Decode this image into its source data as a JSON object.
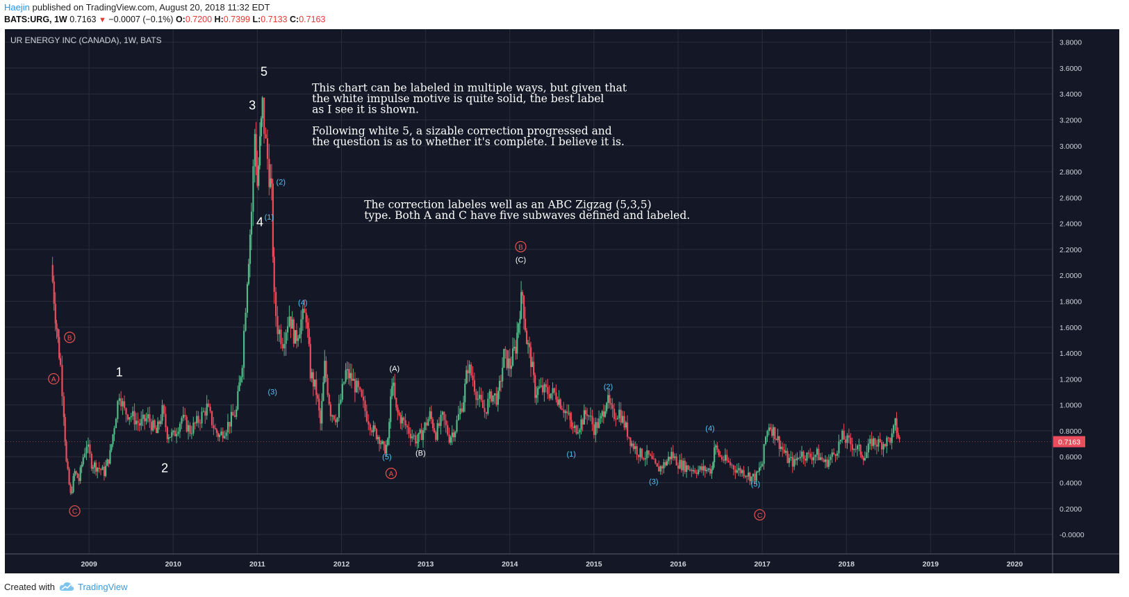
{
  "header": {
    "author": "Haejin",
    "published_text": "published on TradingView.com, August 20, 2018 11:32 EDT",
    "symbol_text": "BATS:URG, 1W",
    "last": "0.7163",
    "change": "−0.0007 (−0.1%)",
    "o_label": "O:",
    "o_value": "0.7200",
    "h_label": "H:",
    "h_value": "0.7399",
    "l_label": "L:",
    "l_value": "0.7133",
    "c_label": "C:",
    "c_value": "0.7163"
  },
  "footer": {
    "created_with": "Created with",
    "brand": "TradingView"
  },
  "chart_data": {
    "type": "candlestick",
    "title": "UR ENERGY INC (CANADA), 1W, BATS",
    "ylim": [
      -0.15,
      3.9
    ],
    "xlim": [
      2008.0,
      2020.45
    ],
    "y_ticks": [
      "3.8000",
      "3.6000",
      "3.4000",
      "3.2000",
      "3.0000",
      "2.8000",
      "2.6000",
      "2.4000",
      "2.2000",
      "2.0000",
      "1.8000",
      "1.6000",
      "1.4000",
      "1.2000",
      "1.0000",
      "0.8000",
      "0.6000",
      "0.4000",
      "0.2000",
      "-0.0000"
    ],
    "x_ticks": [
      "2009",
      "2010",
      "2011",
      "2012",
      "2013",
      "2014",
      "2015",
      "2016",
      "2017",
      "2018",
      "2019",
      "2020"
    ],
    "last_price_label": "0.7163",
    "colors": {
      "up": "#53b987",
      "down": "#eb4d5c",
      "background": "#141826",
      "grid": "#2a2e39"
    },
    "price_path": [
      [
        2008.55,
        2.08
      ],
      [
        2008.6,
        1.7
      ],
      [
        2008.63,
        1.5
      ],
      [
        2008.66,
        1.3
      ],
      [
        2008.7,
        0.95
      ],
      [
        2008.73,
        0.55
      ],
      [
        2008.78,
        0.3
      ],
      [
        2008.83,
        0.48
      ],
      [
        2008.88,
        0.42
      ],
      [
        2008.93,
        0.6
      ],
      [
        2008.97,
        0.7
      ],
      [
        2009.03,
        0.55
      ],
      [
        2009.1,
        0.52
      ],
      [
        2009.18,
        0.48
      ],
      [
        2009.25,
        0.62
      ],
      [
        2009.3,
        0.85
      ],
      [
        2009.36,
        1.1
      ],
      [
        2009.42,
        0.95
      ],
      [
        2009.5,
        0.92
      ],
      [
        2009.6,
        0.85
      ],
      [
        2009.7,
        0.9
      ],
      [
        2009.8,
        0.78
      ],
      [
        2009.87,
        0.95
      ],
      [
        2009.93,
        0.78
      ],
      [
        2010.0,
        0.76
      ],
      [
        2010.1,
        0.9
      ],
      [
        2010.2,
        0.8
      ],
      [
        2010.3,
        0.88
      ],
      [
        2010.4,
        0.98
      ],
      [
        2010.5,
        0.8
      ],
      [
        2010.55,
        0.76
      ],
      [
        2010.65,
        0.85
      ],
      [
        2010.75,
        0.95
      ],
      [
        2010.82,
        1.35
      ],
      [
        2010.88,
        2.0
      ],
      [
        2010.93,
        2.5
      ],
      [
        2010.97,
        3.1
      ],
      [
        2011.0,
        2.7
      ],
      [
        2011.03,
        3.0
      ],
      [
        2011.06,
        3.3
      ],
      [
        2011.1,
        3.0
      ],
      [
        2011.14,
        2.8
      ],
      [
        2011.17,
        2.6
      ],
      [
        2011.2,
        1.8
      ],
      [
        2011.24,
        1.6
      ],
      [
        2011.3,
        1.5
      ],
      [
        2011.38,
        1.7
      ],
      [
        2011.45,
        1.5
      ],
      [
        2011.52,
        1.65
      ],
      [
        2011.58,
        1.7
      ],
      [
        2011.63,
        1.25
      ],
      [
        2011.7,
        1.1
      ],
      [
        2011.75,
        0.85
      ],
      [
        2011.8,
        1.3
      ],
      [
        2011.87,
        0.95
      ],
      [
        2011.95,
        0.9
      ],
      [
        2012.05,
        1.25
      ],
      [
        2012.12,
        1.2
      ],
      [
        2012.2,
        1.1
      ],
      [
        2012.3,
        0.92
      ],
      [
        2012.38,
        0.8
      ],
      [
        2012.45,
        0.75
      ],
      [
        2012.5,
        0.65
      ],
      [
        2012.55,
        0.7
      ],
      [
        2012.6,
        1.2
      ],
      [
        2012.65,
        0.95
      ],
      [
        2012.72,
        0.88
      ],
      [
        2012.8,
        0.8
      ],
      [
        2012.9,
        0.72
      ],
      [
        2012.95,
        0.78
      ],
      [
        2013.05,
        0.92
      ],
      [
        2013.12,
        0.78
      ],
      [
        2013.2,
        0.9
      ],
      [
        2013.28,
        0.75
      ],
      [
        2013.35,
        0.82
      ],
      [
        2013.45,
        1.05
      ],
      [
        2013.5,
        1.3
      ],
      [
        2013.56,
        1.2
      ],
      [
        2013.62,
        1.05
      ],
      [
        2013.7,
        0.95
      ],
      [
        2013.78,
        1.08
      ],
      [
        2013.86,
        1.05
      ],
      [
        2013.93,
        1.38
      ],
      [
        2014.0,
        1.3
      ],
      [
        2014.07,
        1.45
      ],
      [
        2014.12,
        1.75
      ],
      [
        2014.15,
        1.85
      ],
      [
        2014.2,
        1.5
      ],
      [
        2014.25,
        1.35
      ],
      [
        2014.3,
        1.1
      ],
      [
        2014.35,
        1.12
      ],
      [
        2014.45,
        1.1
      ],
      [
        2014.55,
        1.08
      ],
      [
        2014.62,
        1.0
      ],
      [
        2014.7,
        0.9
      ],
      [
        2014.75,
        0.8
      ],
      [
        2014.83,
        0.85
      ],
      [
        2014.92,
        0.95
      ],
      [
        2015.0,
        0.82
      ],
      [
        2015.08,
        0.88
      ],
      [
        2015.15,
        1.05
      ],
      [
        2015.22,
        0.92
      ],
      [
        2015.3,
        0.95
      ],
      [
        2015.38,
        0.82
      ],
      [
        2015.45,
        0.7
      ],
      [
        2015.55,
        0.62
      ],
      [
        2015.65,
        0.6
      ],
      [
        2015.75,
        0.5
      ],
      [
        2015.85,
        0.55
      ],
      [
        2015.92,
        0.62
      ],
      [
        2016.0,
        0.55
      ],
      [
        2016.1,
        0.52
      ],
      [
        2016.2,
        0.5
      ],
      [
        2016.3,
        0.5
      ],
      [
        2016.4,
        0.5
      ],
      [
        2016.43,
        0.68
      ],
      [
        2016.5,
        0.6
      ],
      [
        2016.6,
        0.55
      ],
      [
        2016.7,
        0.5
      ],
      [
        2016.8,
        0.48
      ],
      [
        2016.87,
        0.44
      ],
      [
        2016.93,
        0.45
      ],
      [
        2017.0,
        0.55
      ],
      [
        2017.04,
        0.75
      ],
      [
        2017.08,
        0.85
      ],
      [
        2017.15,
        0.78
      ],
      [
        2017.22,
        0.68
      ],
      [
        2017.3,
        0.58
      ],
      [
        2017.38,
        0.55
      ],
      [
        2017.45,
        0.63
      ],
      [
        2017.55,
        0.6
      ],
      [
        2017.65,
        0.62
      ],
      [
        2017.75,
        0.55
      ],
      [
        2017.85,
        0.62
      ],
      [
        2017.95,
        0.75
      ],
      [
        2018.05,
        0.7
      ],
      [
        2018.15,
        0.65
      ],
      [
        2018.22,
        0.6
      ],
      [
        2018.3,
        0.72
      ],
      [
        2018.4,
        0.7
      ],
      [
        2018.48,
        0.72
      ],
      [
        2018.54,
        0.75
      ],
      [
        2018.58,
        0.85
      ],
      [
        2018.63,
        0.72
      ]
    ],
    "annotations": [
      {
        "text": "5",
        "x": 2011.08,
        "y": 3.54,
        "color": "#ffffff",
        "size": 18,
        "circled": false
      },
      {
        "text": "3",
        "x": 2010.94,
        "y": 3.28,
        "color": "#ffffff",
        "size": 18,
        "circled": false
      },
      {
        "text": "4",
        "x": 2011.03,
        "y": 2.38,
        "color": "#ffffff",
        "size": 18,
        "circled": false
      },
      {
        "text": "1",
        "x": 2009.36,
        "y": 1.22,
        "color": "#ffffff",
        "size": 18,
        "circled": false
      },
      {
        "text": "2",
        "x": 2009.9,
        "y": 0.48,
        "color": "#ffffff",
        "size": 18,
        "circled": false
      },
      {
        "text": "(2)",
        "x": 2011.28,
        "y": 2.7,
        "color": "#4fc3f7",
        "size": 11,
        "circled": false
      },
      {
        "text": "(1)",
        "x": 2011.14,
        "y": 2.43,
        "color": "#4fc3f7",
        "size": 11,
        "circled": false
      },
      {
        "text": "(3)",
        "x": 2011.18,
        "y": 1.08,
        "color": "#4fc3f7",
        "size": 11,
        "circled": false
      },
      {
        "text": "(4)",
        "x": 2011.54,
        "y": 1.77,
        "color": "#4fc3f7",
        "size": 11,
        "circled": false
      },
      {
        "text": "(5)",
        "x": 2012.54,
        "y": 0.58,
        "color": "#4fc3f7",
        "size": 11,
        "circled": false
      },
      {
        "text": "(1)",
        "x": 2014.73,
        "y": 0.6,
        "color": "#4fc3f7",
        "size": 11,
        "circled": false
      },
      {
        "text": "(2)",
        "x": 2015.17,
        "y": 1.12,
        "color": "#4fc3f7",
        "size": 11,
        "circled": false
      },
      {
        "text": "(3)",
        "x": 2015.71,
        "y": 0.39,
        "color": "#4fc3f7",
        "size": 11,
        "circled": false
      },
      {
        "text": "(4)",
        "x": 2016.38,
        "y": 0.8,
        "color": "#4fc3f7",
        "size": 11,
        "circled": false
      },
      {
        "text": "(5)",
        "x": 2016.92,
        "y": 0.37,
        "color": "#4fc3f7",
        "size": 11,
        "circled": false
      },
      {
        "text": "(A)",
        "x": 2012.63,
        "y": 1.26,
        "color": "#ffffff",
        "size": 11,
        "circled": false
      },
      {
        "text": "(B)",
        "x": 2012.94,
        "y": 0.61,
        "color": "#ffffff",
        "size": 11,
        "circled": false
      },
      {
        "text": "(C)",
        "x": 2014.13,
        "y": 2.1,
        "color": "#ffffff",
        "size": 11,
        "circled": false
      },
      {
        "text": "A",
        "x": 2008.58,
        "y": 1.18,
        "color": "#ef5350",
        "size": 10,
        "circled": true
      },
      {
        "text": "B",
        "x": 2008.77,
        "y": 1.5,
        "color": "#ef5350",
        "size": 10,
        "circled": true
      },
      {
        "text": "C",
        "x": 2008.83,
        "y": 0.16,
        "color": "#ef5350",
        "size": 10,
        "circled": true
      },
      {
        "text": "A",
        "x": 2012.59,
        "y": 0.45,
        "color": "#ef5350",
        "size": 10,
        "circled": true
      },
      {
        "text": "B",
        "x": 2014.13,
        "y": 2.2,
        "color": "#ef5350",
        "size": 10,
        "circled": true
      },
      {
        "text": "C",
        "x": 2016.97,
        "y": 0.13,
        "color": "#ef5350",
        "size": 10,
        "circled": true
      }
    ],
    "notes": [
      {
        "lines": [
          "This chart can be labeled in multiple ways, but given that",
          "the white impulse motive is quite solid, the best label",
          "as I see it is shown.",
          "",
          "Following white 5, a sizable correction progressed and",
          "the question is as to whether it's complete. I believe it is."
        ],
        "x": 2011.65,
        "y": 3.42
      },
      {
        "lines": [
          "The correction labeles well as an ABC Zigzag (5,3,5)",
          "type. Both A and C have five subwaves defined and labeled."
        ],
        "x": 2012.27,
        "y": 2.52
      }
    ]
  }
}
